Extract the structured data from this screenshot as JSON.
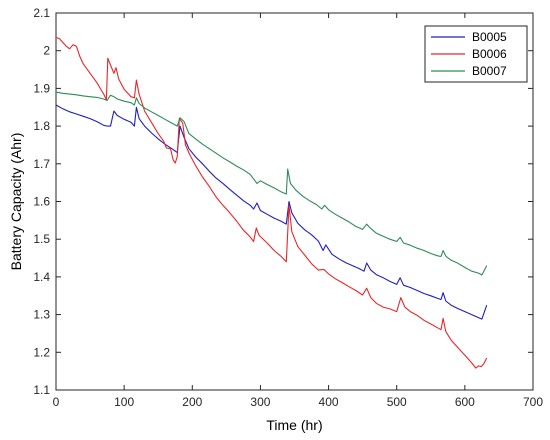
{
  "chart_data": {
    "type": "line",
    "title": "",
    "xlabel": "Time (hr)",
    "ylabel": "Battery Capacity (Ahr)",
    "xlim": [
      0,
      700
    ],
    "ylim": [
      1.1,
      2.1
    ],
    "x_ticks": [
      0,
      100,
      200,
      300,
      400,
      500,
      600,
      700
    ],
    "y_ticks": [
      1.1,
      1.2,
      1.3,
      1.4,
      1.5,
      1.6,
      1.7,
      1.8,
      1.9,
      2,
      2.1
    ],
    "grid": false,
    "legend_position": "top-right",
    "series": [
      {
        "name": "B0005",
        "color": "#1f1fbf",
        "points": [
          [
            0,
            1.856
          ],
          [
            10,
            1.846
          ],
          [
            20,
            1.838
          ],
          [
            30,
            1.832
          ],
          [
            40,
            1.826
          ],
          [
            50,
            1.82
          ],
          [
            60,
            1.812
          ],
          [
            70,
            1.802
          ],
          [
            75,
            1.8
          ],
          [
            80,
            1.8
          ],
          [
            85,
            1.84
          ],
          [
            90,
            1.828
          ],
          [
            100,
            1.818
          ],
          [
            110,
            1.81
          ],
          [
            115,
            1.8
          ],
          [
            118,
            1.85
          ],
          [
            122,
            1.82
          ],
          [
            130,
            1.8
          ],
          [
            140,
            1.782
          ],
          [
            150,
            1.766
          ],
          [
            160,
            1.752
          ],
          [
            170,
            1.74
          ],
          [
            178,
            1.73
          ],
          [
            182,
            1.8
          ],
          [
            188,
            1.77
          ],
          [
            195,
            1.74
          ],
          [
            205,
            1.718
          ],
          [
            215,
            1.7
          ],
          [
            225,
            1.68
          ],
          [
            235,
            1.662
          ],
          [
            245,
            1.648
          ],
          [
            255,
            1.632
          ],
          [
            265,
            1.617
          ],
          [
            275,
            1.602
          ],
          [
            285,
            1.59
          ],
          [
            290,
            1.58
          ],
          [
            295,
            1.596
          ],
          [
            300,
            1.576
          ],
          [
            310,
            1.566
          ],
          [
            320,
            1.556
          ],
          [
            330,
            1.548
          ],
          [
            338,
            1.54
          ],
          [
            342,
            1.6
          ],
          [
            346,
            1.57
          ],
          [
            355,
            1.542
          ],
          [
            365,
            1.525
          ],
          [
            375,
            1.512
          ],
          [
            385,
            1.495
          ],
          [
            392,
            1.47
          ],
          [
            396,
            1.485
          ],
          [
            405,
            1.46
          ],
          [
            415,
            1.448
          ],
          [
            425,
            1.438
          ],
          [
            435,
            1.43
          ],
          [
            445,
            1.422
          ],
          [
            452,
            1.415
          ],
          [
            456,
            1.437
          ],
          [
            462,
            1.418
          ],
          [
            470,
            1.406
          ],
          [
            480,
            1.398
          ],
          [
            490,
            1.388
          ],
          [
            500,
            1.38
          ],
          [
            505,
            1.398
          ],
          [
            510,
            1.378
          ],
          [
            520,
            1.372
          ],
          [
            530,
            1.364
          ],
          [
            540,
            1.356
          ],
          [
            550,
            1.35
          ],
          [
            560,
            1.343
          ],
          [
            565,
            1.34
          ],
          [
            568,
            1.358
          ],
          [
            572,
            1.336
          ],
          [
            580,
            1.325
          ],
          [
            590,
            1.316
          ],
          [
            600,
            1.308
          ],
          [
            610,
            1.3
          ],
          [
            620,
            1.292
          ],
          [
            625,
            1.288
          ],
          [
            632,
            1.325
          ]
        ]
      },
      {
        "name": "B0006",
        "color": "#e8262a",
        "points": [
          [
            0,
            2.035
          ],
          [
            5,
            2.032
          ],
          [
            10,
            2.022
          ],
          [
            15,
            2.012
          ],
          [
            20,
            2.005
          ],
          [
            25,
            2.016
          ],
          [
            30,
            2.012
          ],
          [
            35,
            1.985
          ],
          [
            40,
            1.965
          ],
          [
            50,
            1.94
          ],
          [
            60,
            1.915
          ],
          [
            70,
            1.885
          ],
          [
            74,
            1.87
          ],
          [
            76,
            1.98
          ],
          [
            80,
            1.962
          ],
          [
            85,
            1.94
          ],
          [
            88,
            1.955
          ],
          [
            92,
            1.925
          ],
          [
            100,
            1.898
          ],
          [
            110,
            1.878
          ],
          [
            115,
            1.875
          ],
          [
            118,
            1.922
          ],
          [
            122,
            1.885
          ],
          [
            130,
            1.84
          ],
          [
            140,
            1.81
          ],
          [
            150,
            1.78
          ],
          [
            158,
            1.76
          ],
          [
            162,
            1.742
          ],
          [
            168,
            1.74
          ],
          [
            172,
            1.71
          ],
          [
            175,
            1.702
          ],
          [
            178,
            1.72
          ],
          [
            181,
            1.82
          ],
          [
            186,
            1.808
          ],
          [
            190,
            1.75
          ],
          [
            196,
            1.725
          ],
          [
            205,
            1.695
          ],
          [
            215,
            1.665
          ],
          [
            225,
            1.64
          ],
          [
            235,
            1.612
          ],
          [
            245,
            1.59
          ],
          [
            255,
            1.57
          ],
          [
            265,
            1.548
          ],
          [
            275,
            1.524
          ],
          [
            285,
            1.506
          ],
          [
            290,
            1.494
          ],
          [
            294,
            1.53
          ],
          [
            298,
            1.51
          ],
          [
            310,
            1.49
          ],
          [
            320,
            1.47
          ],
          [
            330,
            1.455
          ],
          [
            338,
            1.44
          ],
          [
            342,
            1.59
          ],
          [
            346,
            1.52
          ],
          [
            355,
            1.48
          ],
          [
            365,
            1.458
          ],
          [
            375,
            1.435
          ],
          [
            385,
            1.418
          ],
          [
            393,
            1.42
          ],
          [
            400,
            1.408
          ],
          [
            410,
            1.395
          ],
          [
            420,
            1.385
          ],
          [
            430,
            1.374
          ],
          [
            440,
            1.364
          ],
          [
            450,
            1.352
          ],
          [
            456,
            1.37
          ],
          [
            462,
            1.345
          ],
          [
            470,
            1.33
          ],
          [
            480,
            1.32
          ],
          [
            490,
            1.315
          ],
          [
            500,
            1.308
          ],
          [
            506,
            1.345
          ],
          [
            512,
            1.32
          ],
          [
            520,
            1.308
          ],
          [
            530,
            1.298
          ],
          [
            540,
            1.285
          ],
          [
            550,
            1.275
          ],
          [
            560,
            1.265
          ],
          [
            565,
            1.26
          ],
          [
            568,
            1.29
          ],
          [
            572,
            1.255
          ],
          [
            580,
            1.232
          ],
          [
            590,
            1.212
          ],
          [
            600,
            1.192
          ],
          [
            610,
            1.172
          ],
          [
            616,
            1.158
          ],
          [
            620,
            1.164
          ],
          [
            624,
            1.162
          ],
          [
            628,
            1.17
          ],
          [
            632,
            1.185
          ]
        ]
      },
      {
        "name": "B0007",
        "color": "#2e8b57",
        "points": [
          [
            0,
            1.89
          ],
          [
            10,
            1.887
          ],
          [
            20,
            1.885
          ],
          [
            30,
            1.883
          ],
          [
            40,
            1.88
          ],
          [
            50,
            1.878
          ],
          [
            60,
            1.876
          ],
          [
            70,
            1.872
          ],
          [
            75,
            1.868
          ],
          [
            80,
            1.882
          ],
          [
            85,
            1.878
          ],
          [
            90,
            1.872
          ],
          [
            100,
            1.866
          ],
          [
            110,
            1.862
          ],
          [
            115,
            1.856
          ],
          [
            118,
            1.875
          ],
          [
            122,
            1.86
          ],
          [
            130,
            1.848
          ],
          [
            140,
            1.838
          ],
          [
            150,
            1.828
          ],
          [
            160,
            1.818
          ],
          [
            170,
            1.808
          ],
          [
            178,
            1.8
          ],
          [
            182,
            1.822
          ],
          [
            188,
            1.812
          ],
          [
            195,
            1.78
          ],
          [
            205,
            1.766
          ],
          [
            215,
            1.752
          ],
          [
            225,
            1.74
          ],
          [
            235,
            1.728
          ],
          [
            245,
            1.716
          ],
          [
            255,
            1.705
          ],
          [
            265,
            1.694
          ],
          [
            275,
            1.684
          ],
          [
            285,
            1.672
          ],
          [
            295,
            1.648
          ],
          [
            300,
            1.655
          ],
          [
            310,
            1.645
          ],
          [
            320,
            1.636
          ],
          [
            330,
            1.626
          ],
          [
            338,
            1.62
          ],
          [
            340,
            1.686
          ],
          [
            344,
            1.648
          ],
          [
            352,
            1.63
          ],
          [
            362,
            1.614
          ],
          [
            372,
            1.602
          ],
          [
            382,
            1.592
          ],
          [
            390,
            1.58
          ],
          [
            394,
            1.59
          ],
          [
            400,
            1.578
          ],
          [
            410,
            1.566
          ],
          [
            420,
            1.556
          ],
          [
            430,
            1.546
          ],
          [
            440,
            1.534
          ],
          [
            450,
            1.526
          ],
          [
            456,
            1.54
          ],
          [
            462,
            1.528
          ],
          [
            470,
            1.516
          ],
          [
            480,
            1.508
          ],
          [
            490,
            1.5
          ],
          [
            500,
            1.494
          ],
          [
            505,
            1.505
          ],
          [
            510,
            1.49
          ],
          [
            520,
            1.484
          ],
          [
            530,
            1.476
          ],
          [
            540,
            1.47
          ],
          [
            550,
            1.462
          ],
          [
            560,
            1.456
          ],
          [
            565,
            1.454
          ],
          [
            568,
            1.47
          ],
          [
            572,
            1.455
          ],
          [
            580,
            1.444
          ],
          [
            590,
            1.436
          ],
          [
            600,
            1.425
          ],
          [
            610,
            1.415
          ],
          [
            620,
            1.41
          ],
          [
            625,
            1.405
          ],
          [
            632,
            1.43
          ]
        ]
      }
    ]
  }
}
